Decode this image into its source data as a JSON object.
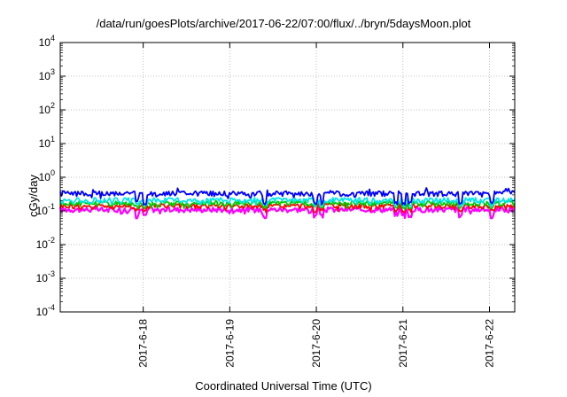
{
  "chart_data": {
    "type": "line",
    "title": "/data/run/goesPlots/archive/2017-06-22/07:00/flux/../bryn/5daysMoon.plot",
    "xlabel": "Coordinated Universal Time (UTC)",
    "ylabel": "cGy/day",
    "yscale": "log",
    "ylim": [
      0.0001,
      10000
    ],
    "y_ticks": [
      {
        "base": "10",
        "exp": "-4",
        "value": 0.0001
      },
      {
        "base": "10",
        "exp": "-3",
        "value": 0.001
      },
      {
        "base": "10",
        "exp": "-2",
        "value": 0.01
      },
      {
        "base": "10",
        "exp": "-1",
        "value": 0.1
      },
      {
        "base": "10",
        "exp": "0",
        "value": 1
      },
      {
        "base": "10",
        "exp": "1",
        "value": 10
      },
      {
        "base": "10",
        "exp": "2",
        "value": 100
      },
      {
        "base": "10",
        "exp": "3",
        "value": 1000
      },
      {
        "base": "10",
        "exp": "4",
        "value": 10000
      }
    ],
    "xlim": [
      "2017-06-17T01:00",
      "2017-06-22T07:00"
    ],
    "x_ticks": [
      {
        "label": "2017-6-18",
        "value": "2017-06-18T00:00"
      },
      {
        "label": "2017-6-19",
        "value": "2017-06-19T00:00"
      },
      {
        "label": "2017-6-20",
        "value": "2017-06-20T00:00"
      },
      {
        "label": "2017-6-21",
        "value": "2017-06-21T00:00"
      },
      {
        "label": "2017-6-22",
        "value": "2017-06-22T00:00"
      }
    ],
    "grid": true,
    "series": [
      {
        "color": "#ff00ff",
        "typical": 0.11,
        "low": 0.06
      },
      {
        "color": "#ff0000",
        "typical": 0.14,
        "low": 0.09
      },
      {
        "color": "#00cc00",
        "typical": 0.17,
        "low": 0.11
      },
      {
        "color": "#00e5e5",
        "typical": 0.21,
        "low": 0.13
      },
      {
        "color": "#0000ff",
        "typical": 0.33,
        "low": 0.15
      }
    ]
  }
}
